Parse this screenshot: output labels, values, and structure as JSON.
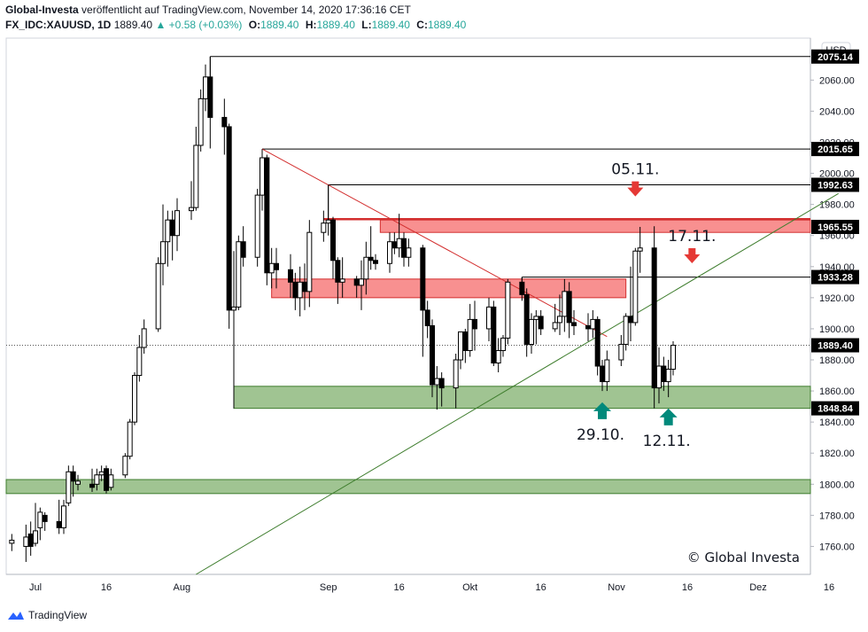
{
  "header": {
    "publisher": "Global-Investa",
    "published_text": "veröffentlicht auf TradingView.com, November 14, 2020 17:36:16 CET",
    "symbol": "FX_IDC:XAUUSD, 1D",
    "last": "1889.40",
    "change": "+0.58 (+0.03%)",
    "open_label": "O:",
    "open": "1889.40",
    "high_label": "H:",
    "high": "1889.40",
    "low_label": "L:",
    "low": "1889.40",
    "close_label": "C:",
    "close": "1889.40",
    "change_icon": "triangle-up-icon"
  },
  "footer": {
    "brand": "TradingView",
    "logo_icon": "tradingview-logo-icon"
  },
  "colors": {
    "up_text": "#26a69a",
    "resistance_zone": "#f77c7c",
    "support_zone": "#8fba7f",
    "downtrend_line": "#d32f2f",
    "uptrend_line": "#3e7d2d",
    "down_arrow": "#e53935",
    "up_arrow": "#00897b",
    "candles": "#000000"
  },
  "chart_data": {
    "type": "candlestick",
    "currency": "USD",
    "x_ticks": [
      "Jul",
      "16",
      "Aug",
      "Sep",
      "16",
      "Okt",
      "16",
      "Nov",
      "16",
      "Dez",
      "16"
    ],
    "y_ticks": [
      1760,
      1780,
      1800,
      1820,
      1840,
      1860,
      1880,
      1900,
      1920,
      1940,
      1960,
      1980,
      2000,
      2020,
      2040,
      2060
    ],
    "ylim": [
      1742,
      2087
    ],
    "price_labels": [
      "2075.14",
      "2015.65",
      "1992.63",
      "1965.55",
      "1933.28",
      "1889.40",
      "1848.84"
    ],
    "last_price": 1889.4,
    "zones": [
      {
        "kind": "resistance",
        "from": 1962,
        "to": 1970
      },
      {
        "kind": "resistance",
        "from": 1920,
        "to": 1932
      },
      {
        "kind": "support",
        "from": 1848.84,
        "to": 1863
      },
      {
        "kind": "support",
        "from": 1794,
        "to": 1803
      }
    ],
    "trendlines": [
      {
        "kind": "down",
        "from": [
          "2020-08-18",
          2015.65
        ],
        "to": [
          "2020-10-30",
          1895
        ]
      },
      {
        "kind": "up",
        "from": [
          "2020-08-04",
          1742
        ],
        "to": [
          "2020-12-18",
          1987
        ]
      }
    ],
    "annotations": [
      {
        "text": "05.11.",
        "arrow": "down",
        "date": "2020-11-05",
        "price": 1988
      },
      {
        "text": "17.11.",
        "arrow": "down",
        "date": "2020-11-17",
        "price": 1945
      },
      {
        "text": "29.10.",
        "arrow": "up",
        "date": "2020-10-29",
        "price": 1847
      },
      {
        "text": "12.11.",
        "arrow": "up",
        "date": "2020-11-12",
        "price": 1843
      }
    ],
    "watermark": "© Global Investa",
    "candles": [
      {
        "d": "2020-06-26",
        "o": 1762,
        "h": 1768,
        "l": 1757,
        "c": 1764
      },
      {
        "d": "2020-06-29",
        "o": 1760,
        "h": 1774,
        "l": 1750,
        "c": 1766
      },
      {
        "d": "2020-06-30",
        "o": 1768,
        "h": 1776,
        "l": 1754,
        "c": 1760
      },
      {
        "d": "2020-07-01",
        "o": 1762,
        "h": 1788,
        "l": 1760,
        "c": 1770
      },
      {
        "d": "2020-07-02",
        "o": 1772,
        "h": 1785,
        "l": 1764,
        "c": 1782
      },
      {
        "d": "2020-07-03",
        "o": 1780,
        "h": 1782,
        "l": 1770,
        "c": 1776
      },
      {
        "d": "2020-07-06",
        "o": 1776,
        "h": 1790,
        "l": 1768,
        "c": 1772
      },
      {
        "d": "2020-07-07",
        "o": 1772,
        "h": 1790,
        "l": 1768,
        "c": 1786
      },
      {
        "d": "2020-07-08",
        "o": 1788,
        "h": 1812,
        "l": 1786,
        "c": 1808
      },
      {
        "d": "2020-07-09",
        "o": 1808,
        "h": 1812,
        "l": 1792,
        "c": 1802
      },
      {
        "d": "2020-07-10",
        "o": 1800,
        "h": 1806,
        "l": 1796,
        "c": 1802
      },
      {
        "d": "2020-07-13",
        "o": 1800,
        "h": 1810,
        "l": 1795,
        "c": 1798
      },
      {
        "d": "2020-07-14",
        "o": 1800,
        "h": 1810,
        "l": 1796,
        "c": 1806
      },
      {
        "d": "2020-07-15",
        "o": 1806,
        "h": 1812,
        "l": 1802,
        "c": 1808
      },
      {
        "d": "2020-07-16",
        "o": 1810,
        "h": 1812,
        "l": 1794,
        "c": 1796
      },
      {
        "d": "2020-07-17",
        "o": 1798,
        "h": 1810,
        "l": 1796,
        "c": 1806
      },
      {
        "d": "2020-07-20",
        "o": 1806,
        "h": 1820,
        "l": 1804,
        "c": 1818
      },
      {
        "d": "2020-07-21",
        "o": 1818,
        "h": 1842,
        "l": 1816,
        "c": 1840
      },
      {
        "d": "2020-07-22",
        "o": 1840,
        "h": 1872,
        "l": 1838,
        "c": 1870
      },
      {
        "d": "2020-07-23",
        "o": 1870,
        "h": 1896,
        "l": 1866,
        "c": 1888
      },
      {
        "d": "2020-07-24",
        "o": 1888,
        "h": 1906,
        "l": 1884,
        "c": 1900
      },
      {
        "d": "2020-07-27",
        "o": 1900,
        "h": 1946,
        "l": 1898,
        "c": 1942
      },
      {
        "d": "2020-07-28",
        "o": 1942,
        "h": 1980,
        "l": 1928,
        "c": 1956
      },
      {
        "d": "2020-07-29",
        "o": 1956,
        "h": 1976,
        "l": 1940,
        "c": 1970
      },
      {
        "d": "2020-07-30",
        "o": 1970,
        "h": 1976,
        "l": 1944,
        "c": 1960
      },
      {
        "d": "2020-07-31",
        "o": 1960,
        "h": 1984,
        "l": 1950,
        "c": 1976
      },
      {
        "d": "2020-08-03",
        "o": 1976,
        "h": 1995,
        "l": 1970,
        "c": 1978
      },
      {
        "d": "2020-08-04",
        "o": 1978,
        "h": 2030,
        "l": 1976,
        "c": 2018
      },
      {
        "d": "2020-08-05",
        "o": 2018,
        "h": 2054,
        "l": 2014,
        "c": 2048
      },
      {
        "d": "2020-08-06",
        "o": 2048,
        "h": 2070,
        "l": 2040,
        "c": 2062
      },
      {
        "d": "2020-08-07",
        "o": 2062,
        "h": 2075.14,
        "l": 2016,
        "c": 2036
      },
      {
        "d": "2020-08-10",
        "o": 2036,
        "h": 2048,
        "l": 2012,
        "c": 2030
      },
      {
        "d": "2020-08-11",
        "o": 2030,
        "h": 2032,
        "l": 1900,
        "c": 1912
      },
      {
        "d": "2020-08-12",
        "o": 1912,
        "h": 1950,
        "l": 1902,
        "c": 1914
      },
      {
        "d": "2020-08-13",
        "o": 1914,
        "h": 1960,
        "l": 1912,
        "c": 1956
      },
      {
        "d": "2020-08-14",
        "o": 1956,
        "h": 1966,
        "l": 1940,
        "c": 1946
      },
      {
        "d": "2020-08-17",
        "o": 1946,
        "h": 1990,
        "l": 1940,
        "c": 1986
      },
      {
        "d": "2020-08-18",
        "o": 1986,
        "h": 2015.65,
        "l": 1976,
        "c": 2010
      },
      {
        "d": "2020-08-19",
        "o": 2010,
        "h": 2012,
        "l": 1928,
        "c": 1936
      },
      {
        "d": "2020-08-20",
        "o": 1936,
        "h": 1952,
        "l": 1926,
        "c": 1942
      },
      {
        "d": "2020-08-21",
        "o": 1942,
        "h": 1952,
        "l": 1926,
        "c": 1938
      },
      {
        "d": "2020-08-24",
        "o": 1938,
        "h": 1948,
        "l": 1920,
        "c": 1930
      },
      {
        "d": "2020-08-25",
        "o": 1930,
        "h": 1936,
        "l": 1912,
        "c": 1920
      },
      {
        "d": "2020-08-26",
        "o": 1920,
        "h": 1940,
        "l": 1908,
        "c": 1930
      },
      {
        "d": "2020-08-27",
        "o": 1930,
        "h": 1942,
        "l": 1912,
        "c": 1924
      },
      {
        "d": "2020-08-28",
        "o": 1924,
        "h": 1970,
        "l": 1914,
        "c": 1962
      },
      {
        "d": "2020-08-31",
        "o": 1962,
        "h": 1976,
        "l": 1956,
        "c": 1968
      },
      {
        "d": "2020-09-01",
        "o": 1968,
        "h": 1992.63,
        "l": 1960,
        "c": 1970
      },
      {
        "d": "2020-09-02",
        "o": 1970,
        "h": 1972,
        "l": 1932,
        "c": 1944
      },
      {
        "d": "2020-09-03",
        "o": 1944,
        "h": 1946,
        "l": 1916,
        "c": 1930
      },
      {
        "d": "2020-09-04",
        "o": 1930,
        "h": 1946,
        "l": 1920,
        "c": 1932
      },
      {
        "d": "2020-09-07",
        "o": 1932,
        "h": 1934,
        "l": 1920,
        "c": 1928
      },
      {
        "d": "2020-09-08",
        "o": 1928,
        "h": 1944,
        "l": 1912,
        "c": 1932
      },
      {
        "d": "2020-09-09",
        "o": 1932,
        "h": 1956,
        "l": 1922,
        "c": 1946
      },
      {
        "d": "2020-09-10",
        "o": 1946,
        "h": 1966,
        "l": 1938,
        "c": 1944
      },
      {
        "d": "2020-09-11",
        "o": 1944,
        "h": 1948,
        "l": 1938,
        "c": 1942
      },
      {
        "d": "2020-09-14",
        "o": 1942,
        "h": 1962,
        "l": 1936,
        "c": 1956
      },
      {
        "d": "2020-09-15",
        "o": 1956,
        "h": 1962,
        "l": 1948,
        "c": 1952
      },
      {
        "d": "2020-09-16",
        "o": 1952,
        "h": 1974,
        "l": 1946,
        "c": 1958
      },
      {
        "d": "2020-09-17",
        "o": 1958,
        "h": 1962,
        "l": 1940,
        "c": 1946
      },
      {
        "d": "2020-09-18",
        "o": 1946,
        "h": 1958,
        "l": 1940,
        "c": 1952
      },
      {
        "d": "2020-09-21",
        "o": 1952,
        "h": 1954,
        "l": 1882,
        "c": 1912
      },
      {
        "d": "2020-09-22",
        "o": 1912,
        "h": 1918,
        "l": 1894,
        "c": 1902
      },
      {
        "d": "2020-09-23",
        "o": 1902,
        "h": 1906,
        "l": 1856,
        "c": 1864
      },
      {
        "d": "2020-09-24",
        "o": 1864,
        "h": 1876,
        "l": 1848,
        "c": 1868
      },
      {
        "d": "2020-09-25",
        "o": 1868,
        "h": 1872,
        "l": 1850,
        "c": 1862
      },
      {
        "d": "2020-09-28",
        "o": 1862,
        "h": 1884,
        "l": 1848.84,
        "c": 1880
      },
      {
        "d": "2020-09-29",
        "o": 1880,
        "h": 1898,
        "l": 1874,
        "c": 1898
      },
      {
        "d": "2020-09-30",
        "o": 1898,
        "h": 1900,
        "l": 1878,
        "c": 1886
      },
      {
        "d": "2020-10-01",
        "o": 1886,
        "h": 1916,
        "l": 1882,
        "c": 1906
      },
      {
        "d": "2020-10-02",
        "o": 1906,
        "h": 1918,
        "l": 1886,
        "c": 1900
      },
      {
        "d": "2020-10-05",
        "o": 1900,
        "h": 1920,
        "l": 1892,
        "c": 1914
      },
      {
        "d": "2020-10-06",
        "o": 1914,
        "h": 1918,
        "l": 1876,
        "c": 1878
      },
      {
        "d": "2020-10-07",
        "o": 1878,
        "h": 1894,
        "l": 1872,
        "c": 1886
      },
      {
        "d": "2020-10-08",
        "o": 1886,
        "h": 1896,
        "l": 1882,
        "c": 1894
      },
      {
        "d": "2020-10-09",
        "o": 1894,
        "h": 1932,
        "l": 1890,
        "c": 1930
      },
      {
        "d": "2020-10-12",
        "o": 1930,
        "h": 1933.28,
        "l": 1918,
        "c": 1922
      },
      {
        "d": "2020-10-13",
        "o": 1922,
        "h": 1926,
        "l": 1882,
        "c": 1890
      },
      {
        "d": "2020-10-14",
        "o": 1890,
        "h": 1910,
        "l": 1884,
        "c": 1906
      },
      {
        "d": "2020-10-15",
        "o": 1906,
        "h": 1912,
        "l": 1890,
        "c": 1908
      },
      {
        "d": "2020-10-16",
        "o": 1908,
        "h": 1912,
        "l": 1896,
        "c": 1900
      },
      {
        "d": "2020-10-19",
        "o": 1900,
        "h": 1916,
        "l": 1898,
        "c": 1904
      },
      {
        "d": "2020-10-20",
        "o": 1904,
        "h": 1922,
        "l": 1896,
        "c": 1908
      },
      {
        "d": "2020-10-21",
        "o": 1908,
        "h": 1932,
        "l": 1898,
        "c": 1924
      },
      {
        "d": "2020-10-22",
        "o": 1924,
        "h": 1930,
        "l": 1894,
        "c": 1904
      },
      {
        "d": "2020-10-23",
        "o": 1904,
        "h": 1912,
        "l": 1896,
        "c": 1902
      },
      {
        "d": "2020-10-26",
        "o": 1902,
        "h": 1910,
        "l": 1892,
        "c": 1900
      },
      {
        "d": "2020-10-27",
        "o": 1900,
        "h": 1912,
        "l": 1894,
        "c": 1906
      },
      {
        "d": "2020-10-28",
        "o": 1906,
        "h": 1908,
        "l": 1870,
        "c": 1876
      },
      {
        "d": "2020-10-29",
        "o": 1876,
        "h": 1880,
        "l": 1860,
        "c": 1866
      },
      {
        "d": "2020-10-30",
        "o": 1866,
        "h": 1886,
        "l": 1860,
        "c": 1880
      },
      {
        "d": "2020-11-02",
        "o": 1880,
        "h": 1896,
        "l": 1876,
        "c": 1890
      },
      {
        "d": "2020-11-03",
        "o": 1890,
        "h": 1910,
        "l": 1886,
        "c": 1908
      },
      {
        "d": "2020-11-04",
        "o": 1908,
        "h": 1940,
        "l": 1892,
        "c": 1904
      },
      {
        "d": "2020-11-05",
        "o": 1904,
        "h": 1952,
        "l": 1902,
        "c": 1950
      },
      {
        "d": "2020-11-06",
        "o": 1950,
        "h": 1965.55,
        "l": 1936,
        "c": 1952
      },
      {
        "d": "2020-11-09",
        "o": 1952,
        "h": 1966,
        "l": 1848.84,
        "c": 1862
      },
      {
        "d": "2020-11-10",
        "o": 1862,
        "h": 1888,
        "l": 1852,
        "c": 1876
      },
      {
        "d": "2020-11-11",
        "o": 1876,
        "h": 1882,
        "l": 1860,
        "c": 1866
      },
      {
        "d": "2020-11-12",
        "o": 1866,
        "h": 1880,
        "l": 1856,
        "c": 1874
      },
      {
        "d": "2020-11-13",
        "o": 1874,
        "h": 1892,
        "l": 1870,
        "c": 1889.4
      }
    ]
  }
}
